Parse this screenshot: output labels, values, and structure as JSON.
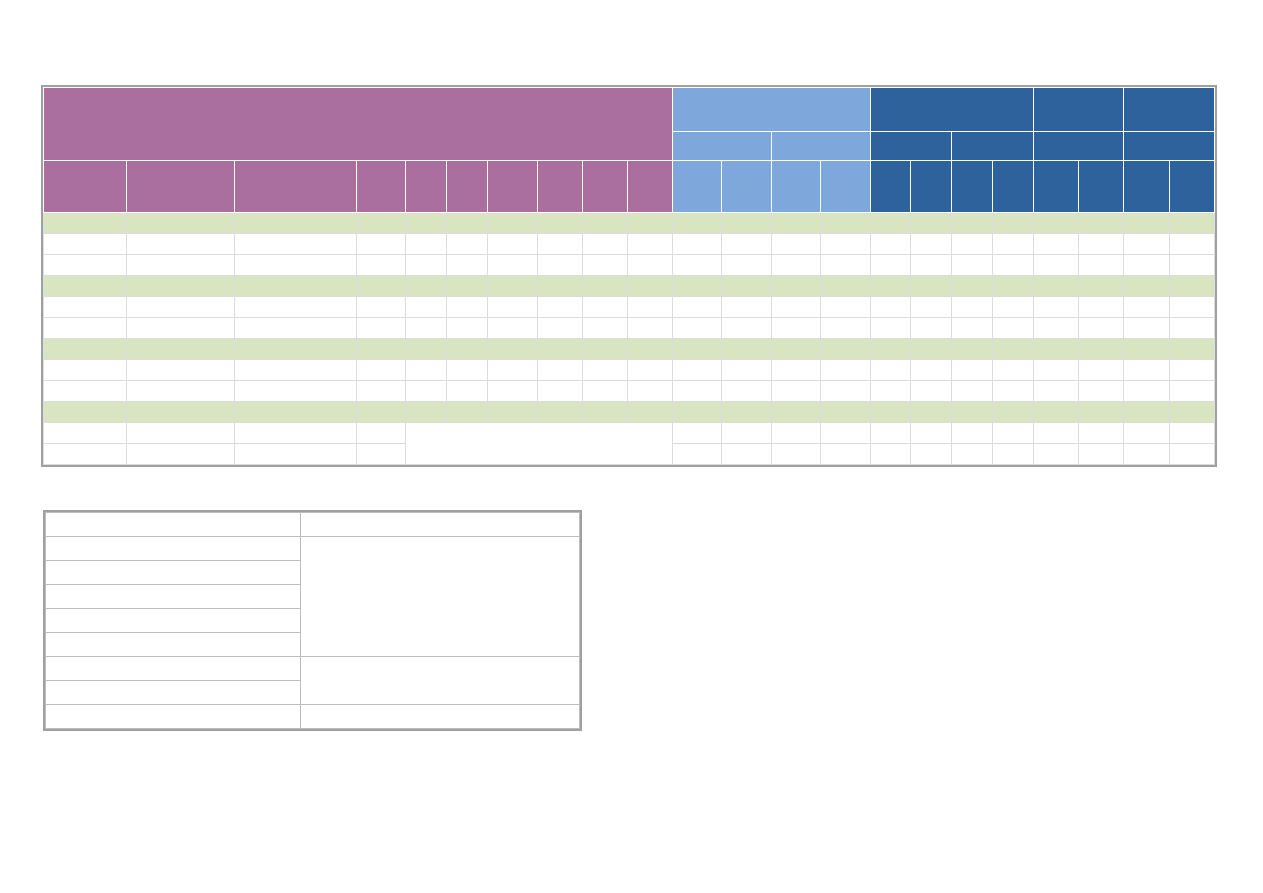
{
  "colors": {
    "header_purple": "#ab6f9f",
    "header_light_blue": "#7ea8dc",
    "header_dark_blue": "#2d629c",
    "band_green": "#d9e5c0",
    "grid_line": "#dcdcdc",
    "outer_border": "#a0a0a0"
  },
  "main_table": {
    "rows": [
      "band",
      "plain",
      "plain",
      "band",
      "plain",
      "plain",
      "band",
      "plain",
      "plain",
      "band",
      "merged",
      "merged"
    ]
  },
  "legend_table": {
    "rows": 9
  }
}
